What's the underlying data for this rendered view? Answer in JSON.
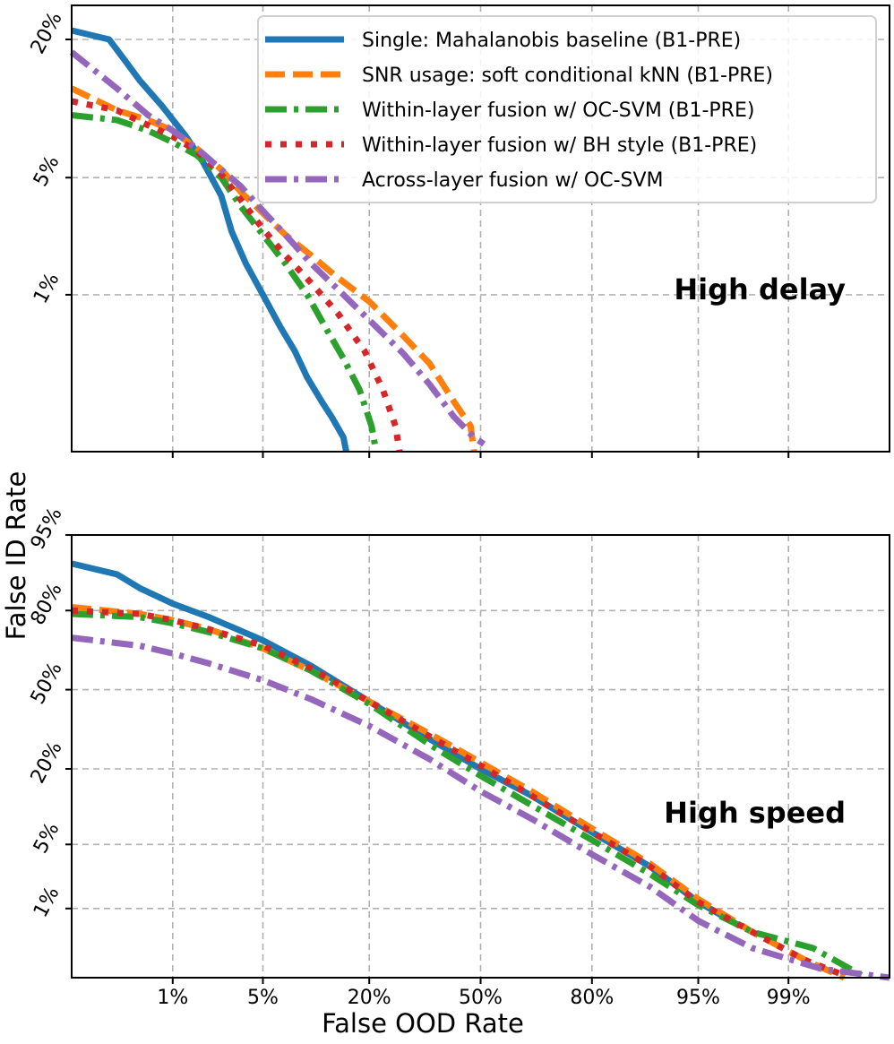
{
  "figure": {
    "ylabel": "False ID Rate",
    "xlabel": "False OOD Rate",
    "x_tick_labels": [
      "1%",
      "5%",
      "20%",
      "50%",
      "80%",
      "95%",
      "99%"
    ]
  },
  "colors": {
    "blue": "#1f77b4",
    "orange": "#ff7f0e",
    "green": "#2ca02c",
    "red": "#d62728",
    "purple": "#9467bd"
  },
  "legend": [
    {
      "label": "Single: Mahalanobis baseline (B1-PRE)",
      "color": "#1f77b4",
      "dash": "solid"
    },
    {
      "label": "SNR usage: soft conditional kNN (B1-PRE)",
      "color": "#ff7f0e",
      "dash": "dashed"
    },
    {
      "label": "Within-layer fusion w/ OC-SVM (B1-PRE)",
      "color": "#2ca02c",
      "dash": "dashdot"
    },
    {
      "label": "Within-layer fusion w/ BH style (B1-PRE)",
      "color": "#d62728",
      "dash": "dotted"
    },
    {
      "label": "Across-layer fusion w/ OC-SVM",
      "color": "#9467bd",
      "dash": "dashdot"
    }
  ],
  "chart_data": [
    {
      "type": "line",
      "title": "High delay",
      "xlabel": "False OOD Rate",
      "ylabel": "False ID Rate",
      "x_scale": "probit",
      "y_scale": "probit",
      "xlim": [
        0.1,
        99.9
      ],
      "ylim": [
        0.06,
        26
      ],
      "x_ticks": [
        1,
        5,
        20,
        50,
        80,
        95,
        99
      ],
      "y_ticks": [
        1,
        5,
        20
      ],
      "y_tick_labels": [
        "1%",
        "5%",
        "20%"
      ],
      "grid": true,
      "legend_position": "top-right",
      "series": [
        {
          "name": "Single: Mahalanobis baseline (B1-PRE)",
          "color": "#1f77b4",
          "dash": "solid",
          "x": [
            0.1,
            0.25,
            0.35,
            0.5,
            0.8,
            1.3,
            1.8,
            2.5,
            3.0,
            3.8,
            5.0,
            6.5,
            8.0,
            9.5,
            11.5,
            13.0,
            15.0,
            15.5
          ],
          "y": [
            21.5,
            20,
            17,
            14,
            11,
            8,
            6,
            4,
            2.5,
            1.6,
            1.0,
            0.6,
            0.4,
            0.25,
            0.16,
            0.12,
            0.08,
            0.06
          ]
        },
        {
          "name": "SNR usage: soft conditional kNN (B1-PRE)",
          "color": "#ff7f0e",
          "dash": "dashed",
          "x": [
            0.1,
            0.3,
            0.6,
            1.0,
            1.6,
            2.5,
            3.5,
            5.0,
            7.0,
            10.0,
            14.0,
            20.0,
            27.0,
            35.0,
            42.0,
            47.0,
            48.0
          ],
          "y": [
            13,
            10.5,
            9.5,
            8.5,
            7.0,
            5.5,
            4.2,
            3.2,
            2.4,
            1.8,
            1.3,
            0.9,
            0.55,
            0.32,
            0.16,
            0.1,
            0.06
          ]
        },
        {
          "name": "Within-layer fusion w/ OC-SVM (B1-PRE)",
          "color": "#2ca02c",
          "dash": "dashdot",
          "x": [
            0.1,
            0.3,
            0.6,
            1.0,
            1.6,
            2.5,
            3.5,
            5.0,
            7.0,
            9.5,
            12.0,
            15.0,
            18.0,
            20.5,
            21.5
          ],
          "y": [
            10,
            9.5,
            8.5,
            7.5,
            6.5,
            5.0,
            3.5,
            2.4,
            1.6,
            1.0,
            0.6,
            0.35,
            0.2,
            0.1,
            0.06
          ]
        },
        {
          "name": "Within-layer fusion w/ BH style (B1-PRE)",
          "color": "#d62728",
          "dash": "dotted",
          "x": [
            0.1,
            0.3,
            0.6,
            1.0,
            1.6,
            2.5,
            3.5,
            5.0,
            7.0,
            10.0,
            14.0,
            19.0,
            23.0,
            26.0,
            27.0
          ],
          "y": [
            11.5,
            10.5,
            9.0,
            8.0,
            6.8,
            5.2,
            3.8,
            2.6,
            1.8,
            1.2,
            0.75,
            0.4,
            0.2,
            0.1,
            0.06
          ]
        },
        {
          "name": "Across-layer fusion w/ OC-SVM",
          "color": "#9467bd",
          "dash": "dashdot",
          "x": [
            0.1,
            0.3,
            0.6,
            1.0,
            1.6,
            2.5,
            3.5,
            5.0,
            7.0,
            10.0,
            15.0,
            21.0,
            28.0,
            35.0,
            42.0,
            48.0,
            51.0
          ],
          "y": [
            18,
            13,
            10,
            8.5,
            7.0,
            5.5,
            4.5,
            3.3,
            2.4,
            1.6,
            1.0,
            0.62,
            0.38,
            0.22,
            0.12,
            0.08,
            0.07
          ]
        }
      ]
    },
    {
      "type": "line",
      "title": "High speed",
      "xlabel": "False OOD Rate",
      "ylabel": "False ID Rate",
      "x_scale": "probit",
      "y_scale": "probit",
      "xlim": [
        0.1,
        99.9
      ],
      "ylim": [
        0.11,
        95
      ],
      "x_ticks": [
        1,
        5,
        20,
        50,
        80,
        95,
        99
      ],
      "y_ticks": [
        1,
        5,
        20,
        50,
        80,
        95
      ],
      "y_tick_labels": [
        "1%",
        "5%",
        "20%",
        "50%",
        "80%",
        "95%"
      ],
      "grid": true,
      "series": [
        {
          "name": "Single: Mahalanobis baseline (B1-PRE)",
          "color": "#1f77b4",
          "dash": "solid",
          "x": [
            0.1,
            0.3,
            0.5,
            1.0,
            2.0,
            5.0,
            10.0,
            20.0,
            35.0,
            50.0,
            65.0,
            80.0,
            90.0,
            95.0,
            97.5
          ],
          "y": [
            91,
            89,
            86,
            82,
            78,
            70,
            60,
            45,
            30,
            20,
            13,
            6.5,
            3.0,
            1.2,
            0.6
          ]
        },
        {
          "name": "SNR usage: soft conditional kNN (B1-PRE)",
          "color": "#ff7f0e",
          "dash": "dashed",
          "x": [
            0.1,
            0.5,
            1.0,
            2.0,
            5.0,
            10.0,
            20.0,
            35.0,
            50.0,
            65.0,
            80.0,
            90.0,
            95.0,
            98.0,
            99.3,
            99.7
          ],
          "y": [
            81,
            79,
            77,
            74,
            67,
            58,
            45,
            32,
            22,
            14,
            7.0,
            3.2,
            1.3,
            0.5,
            0.2,
            0.11
          ]
        },
        {
          "name": "Within-layer fusion w/ OC-SVM (B1-PRE)",
          "color": "#2ca02c",
          "dash": "dashdot",
          "x": [
            0.1,
            0.5,
            1.0,
            2.0,
            5.0,
            10.0,
            20.0,
            35.0,
            50.0,
            65.0,
            80.0,
            90.0,
            95.0,
            98.0,
            99.4,
            99.8
          ],
          "y": [
            79,
            78,
            76,
            73,
            67,
            58,
            44,
            28,
            18,
            11,
            5.5,
            2.5,
            1.1,
            0.5,
            0.3,
            0.12
          ]
        },
        {
          "name": "Within-layer fusion w/ BH style (B1-PRE)",
          "color": "#d62728",
          "dash": "dotted",
          "x": [
            0.1,
            0.5,
            1.0,
            2.0,
            5.0,
            10.0,
            20.0,
            35.0,
            50.0,
            65.0,
            80.0,
            90.0,
            95.0,
            98.0,
            99.3,
            99.7
          ],
          "y": [
            80,
            79,
            77,
            74,
            68,
            59,
            45,
            31,
            21,
            13,
            6.5,
            3.0,
            1.2,
            0.5,
            0.2,
            0.12
          ]
        },
        {
          "name": "Across-layer fusion w/ OC-SVM",
          "color": "#9467bd",
          "dash": "dashdot",
          "x": [
            0.1,
            0.5,
            1.0,
            2.0,
            5.0,
            10.0,
            20.0,
            35.0,
            50.0,
            65.0,
            80.0,
            90.0,
            95.0,
            98.0,
            99.5,
            99.9
          ],
          "y": [
            71,
            68,
            65,
            61,
            54,
            46,
            35,
            23,
            14,
            8.5,
            4.0,
            1.8,
            0.7,
            0.3,
            0.15,
            0.11
          ]
        }
      ]
    }
  ]
}
